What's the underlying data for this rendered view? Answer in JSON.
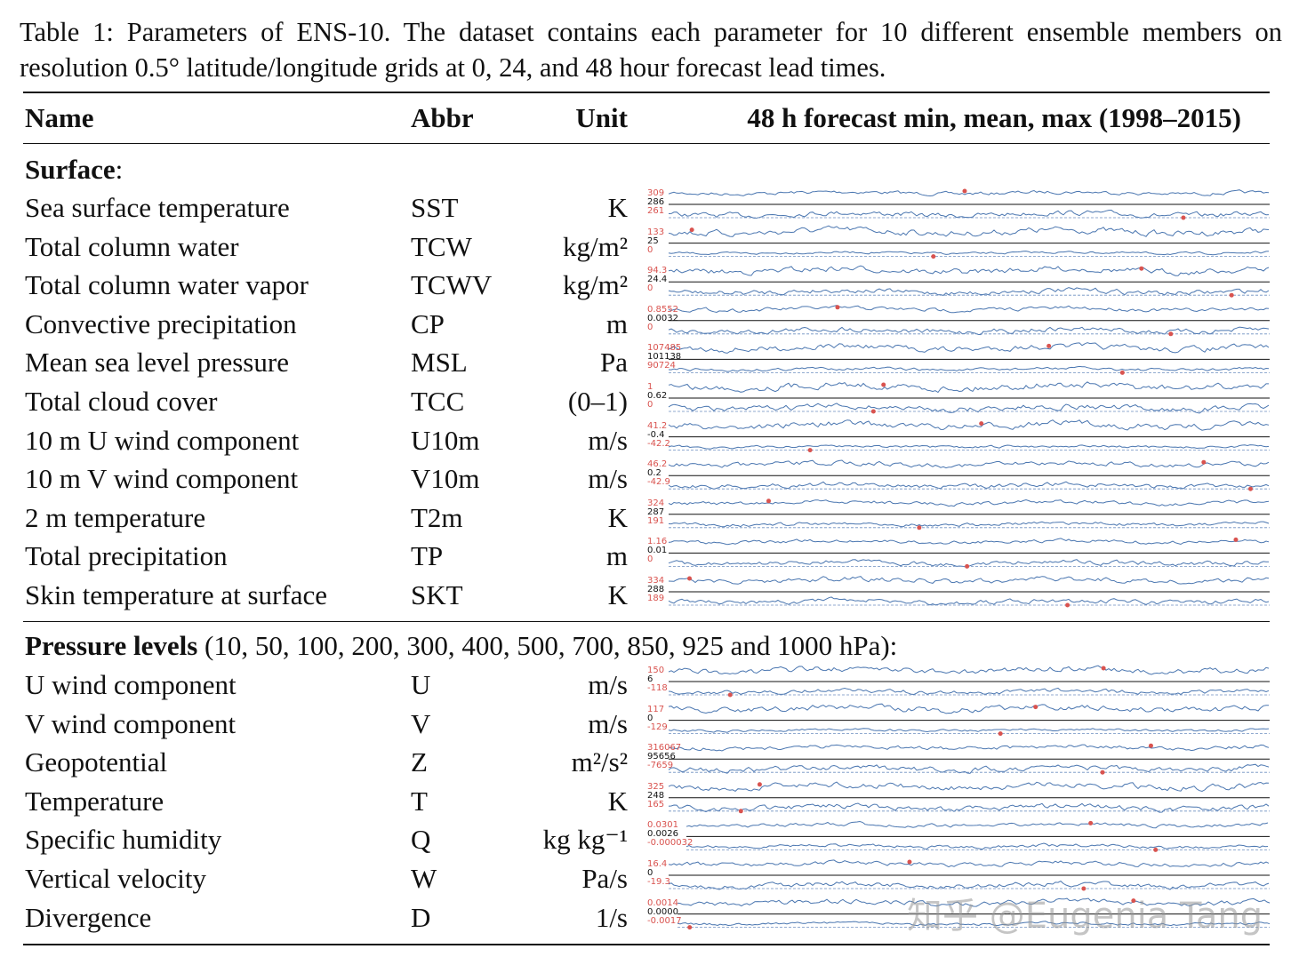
{
  "caption": "Table 1: Parameters of ENS-10. The dataset contains each parameter for 10 different ensemble members on resolution 0.5° latitude/longitude grids at 0, 24, and 48 hour forecast lead times.",
  "header": [
    "Name",
    "Abbr",
    "Unit",
    "48 h forecast min, mean, max (1998–2015)"
  ],
  "sections": [
    {
      "title": "Surface",
      "title_rest": ":",
      "rows": [
        {
          "name": "Sea surface temperature",
          "abbr": "SST",
          "unit": "K",
          "max": "309",
          "mean": "286",
          "min": "261"
        },
        {
          "name": "Total column water",
          "abbr": "TCW",
          "unit": "kg/m²",
          "max": "133",
          "mean": "25",
          "min": "0"
        },
        {
          "name": "Total column water vapor",
          "abbr": "TCWV",
          "unit": "kg/m²",
          "max": "94.3",
          "mean": "24.4",
          "min": "0"
        },
        {
          "name": "Convective precipitation",
          "abbr": "CP",
          "unit": "m",
          "max": "0.8552",
          "mean": "0.0032",
          "min": "0"
        },
        {
          "name": "Mean sea level pressure",
          "abbr": "MSL",
          "unit": "Pa",
          "max": "107485",
          "mean": "101138",
          "min": "90724"
        },
        {
          "name": "Total cloud cover",
          "abbr": "TCC",
          "unit": "(0–1)",
          "max": "1",
          "mean": "0.62",
          "min": "0"
        },
        {
          "name": "10 m U wind component",
          "abbr": "U10m",
          "unit": "m/s",
          "max": "41.2",
          "mean": "-0.4",
          "min": "-42.2"
        },
        {
          "name": "10 m V wind component",
          "abbr": "V10m",
          "unit": "m/s",
          "max": "46.2",
          "mean": "0.2",
          "min": "-42.9"
        },
        {
          "name": "2 m temperature",
          "abbr": "T2m",
          "unit": "K",
          "max": "324",
          "mean": "287",
          "min": "191"
        },
        {
          "name": "Total precipitation",
          "abbr": "TP",
          "unit": "m",
          "max": "1.16",
          "mean": "0.01",
          "min": "0"
        },
        {
          "name": "Skin temperature at surface",
          "abbr": "SKT",
          "unit": "K",
          "max": "334",
          "mean": "288",
          "min": "189"
        }
      ]
    },
    {
      "title": "Pressure levels",
      "title_rest": " (10, 50, 100, 200, 300, 400, 500, 700, 850, 925 and 1000 hPa):",
      "rows": [
        {
          "name": "U wind component",
          "abbr": "U",
          "unit": "m/s",
          "max": "150",
          "mean": "6",
          "min": "-118"
        },
        {
          "name": "V wind component",
          "abbr": "V",
          "unit": "m/s",
          "max": "117",
          "mean": "0",
          "min": "-129"
        },
        {
          "name": "Geopotential",
          "abbr": "Z",
          "unit": "m²/s²",
          "max": "316067",
          "mean": "95656",
          "min": "-7659"
        },
        {
          "name": "Temperature",
          "abbr": "T",
          "unit": "K",
          "max": "325",
          "mean": "248",
          "min": "165"
        },
        {
          "name": "Specific humidity",
          "abbr": "Q",
          "unit": "kg kg⁻¹",
          "max": "0.0301",
          "mean": "0.0026",
          "min": "-0.000032"
        },
        {
          "name": "Vertical velocity",
          "abbr": "W",
          "unit": "Pa/s",
          "max": "16.4",
          "mean": "0",
          "min": "-19.3"
        },
        {
          "name": "Divergence",
          "abbr": "D",
          "unit": "1/s",
          "max": "0.0014",
          "mean": "0.0000",
          "min": "-0.0017"
        }
      ]
    }
  ],
  "watermark": "知乎 @Eugenia Tang"
}
